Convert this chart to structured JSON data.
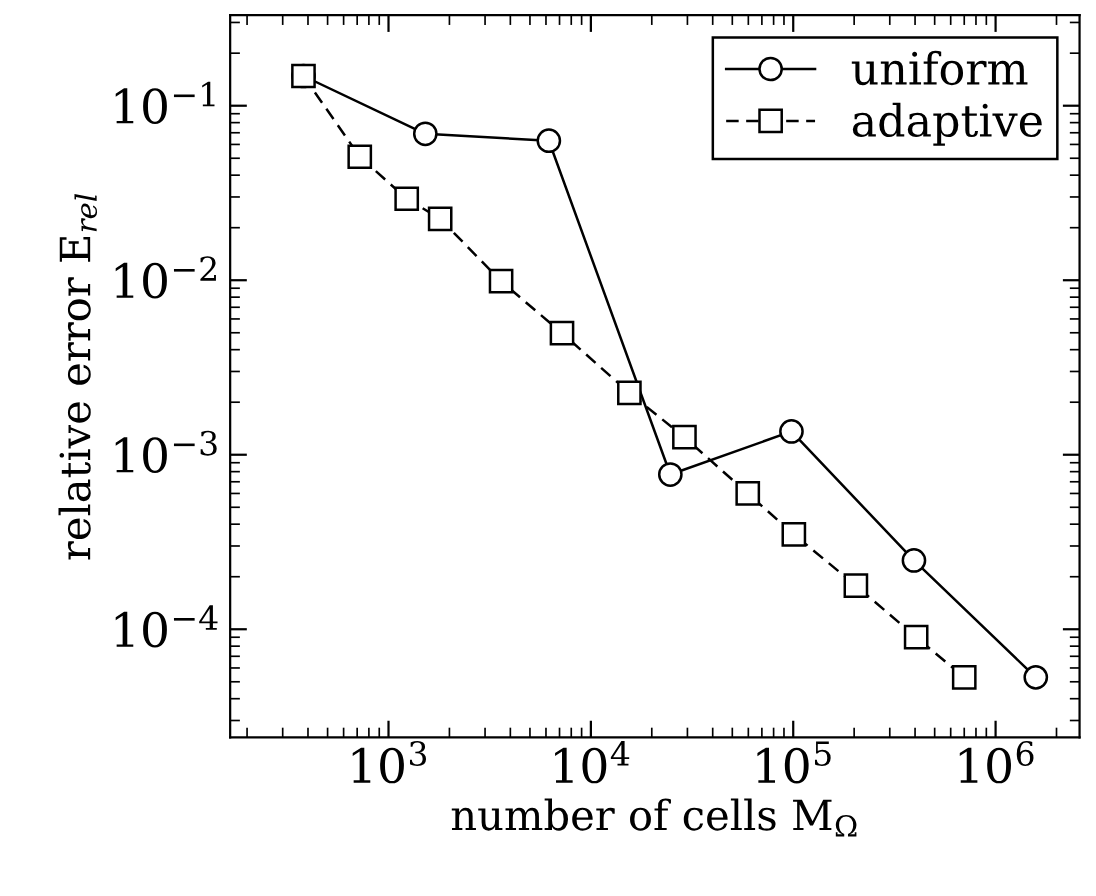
{
  "chart_data": {
    "type": "line",
    "xlabel": "number of cells M$_{Ω}$",
    "ylabel": "relative error E$_{rel}$",
    "log": "xy",
    "grid": false,
    "legend": "top right",
    "xlim": [
      165,
      2600000
    ],
    "ylim": [
      2.4e-05,
      0.33
    ],
    "xticks": [
      {
        "value": 1000,
        "label": "10$^{3}$"
      },
      {
        "value": 10000,
        "label": "10$^{4}$"
      },
      {
        "value": 100000,
        "label": "10$^{5}$"
      },
      {
        "value": 1000000,
        "label": "10$^{6}$"
      }
    ],
    "yticks": [
      {
        "value": 0.0001,
        "label": "10$^{−4}$"
      },
      {
        "value": 0.001,
        "label": "10$^{−3}$"
      },
      {
        "value": 0.01,
        "label": "10$^{−2}$"
      },
      {
        "value": 0.1,
        "label": "10$^{−1}$"
      }
    ],
    "series": [
      {
        "name": "uniform",
        "color": "#000000",
        "marker": "circle",
        "line_style": "solid",
        "x": [
          380,
          1520,
          6200,
          24700,
          98000,
          395000,
          1580000
        ],
        "values": [
          0.148,
          0.069,
          0.063,
          0.00077,
          0.00136,
          0.000248,
          5.3e-05
        ]
      },
      {
        "name": "adaptive",
        "color": "#000000",
        "marker": "square",
        "line_style": "dashed",
        "x": [
          380,
          721,
          1230,
          1800,
          3600,
          7200,
          15500,
          29000,
          59600,
          100700,
          204000,
          405000,
          700000
        ],
        "values": [
          0.148,
          0.051,
          0.0293,
          0.0225,
          0.00987,
          0.00498,
          0.00226,
          0.00126,
          0.0006,
          0.00035,
          0.000178,
          9e-05,
          5.3e-05
        ]
      }
    ]
  }
}
